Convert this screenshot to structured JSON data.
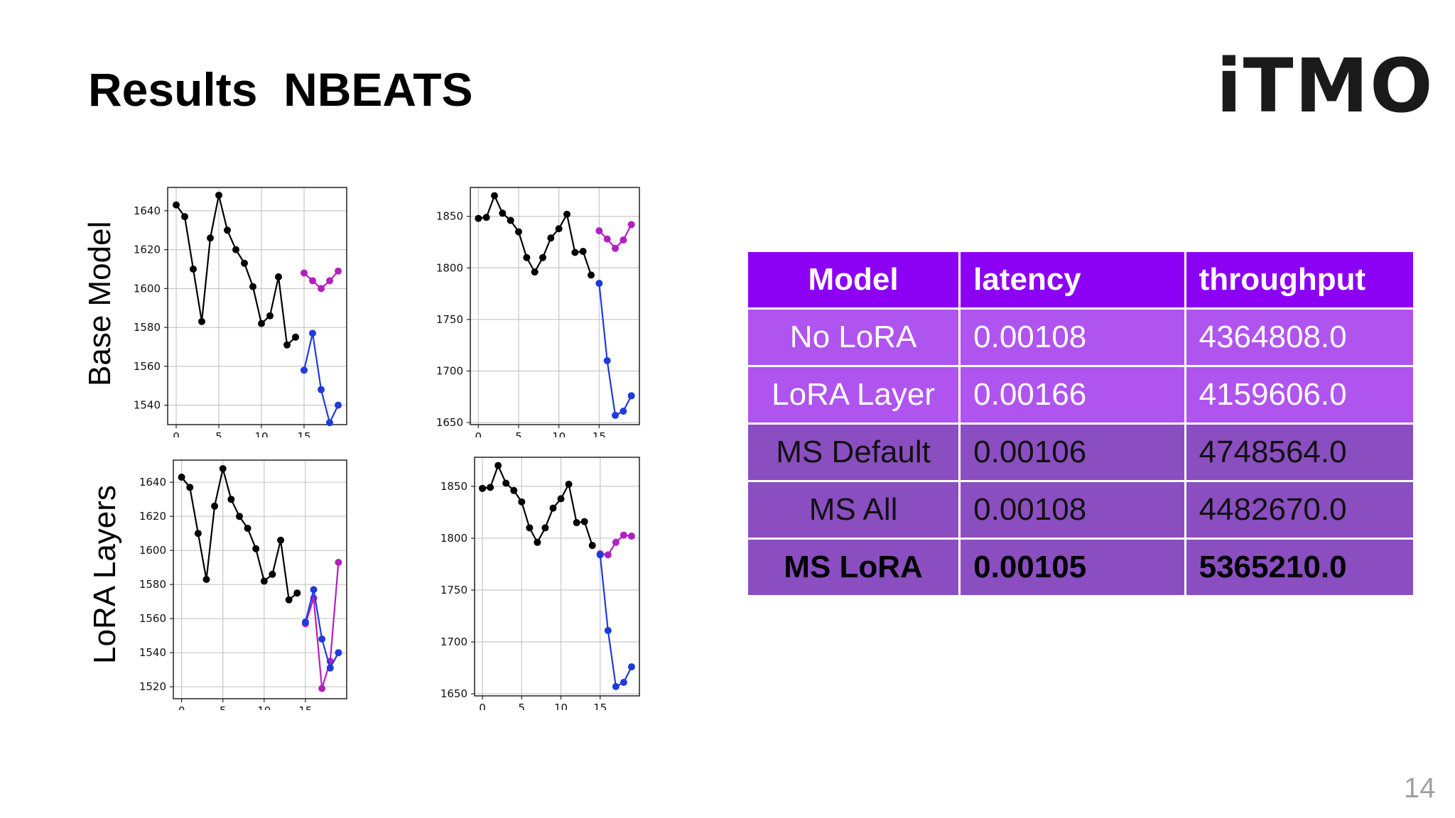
{
  "slide": {
    "title": "Results  NBEATS",
    "logo": "iTMO",
    "page_number": "14",
    "row_labels": [
      "Base Model",
      "LoRA Layers"
    ]
  },
  "colors": {
    "history": "#000000",
    "blue": "#1f3bdc",
    "magenta": "#b41fc0",
    "table_header": "#8c00f4",
    "table_light": "#b054ef",
    "table_dark": "#8a4ec0"
  },
  "table": {
    "headers": [
      "Model",
      "latency",
      "throughput"
    ],
    "rows": [
      {
        "model": "No LoRA",
        "latency": "0.00108",
        "throughput": "4364808.0"
      },
      {
        "model": "LoRA Layer",
        "latency": "0.00166",
        "throughput": "4159606.0"
      },
      {
        "model": "MS Default",
        "latency": "0.00106",
        "throughput": "4748564.0"
      },
      {
        "model": "MS All",
        "latency": "0.00108",
        "throughput": "4482670.0"
      },
      {
        "model": "MS LoRA",
        "latency": "0.00105",
        "throughput": "5365210.0"
      }
    ]
  },
  "chart_data": [
    {
      "type": "line",
      "xlim": [
        -1,
        20
      ],
      "ylim": [
        1530,
        1652
      ],
      "xticks": [
        0,
        5,
        10,
        15
      ],
      "yticks": [
        1540,
        1560,
        1580,
        1600,
        1620,
        1640
      ],
      "grid": true,
      "series": [
        {
          "color": "#000000",
          "x": [
            0,
            1,
            2,
            3,
            4,
            5,
            6,
            7,
            8,
            9,
            10,
            11,
            12,
            13,
            14
          ],
          "y": [
            1643,
            1637,
            1610,
            1583,
            1626,
            1648,
            1630,
            1620,
            1613,
            1601,
            1582,
            1586,
            1606,
            1571,
            1575
          ]
        },
        {
          "color": "#b41fc0",
          "x": [
            15,
            16,
            17,
            18,
            19
          ],
          "y": [
            1608,
            1604,
            1600,
            1604,
            1609
          ]
        },
        {
          "color": "#1f3bdc",
          "x": [
            15,
            16,
            17,
            18,
            19
          ],
          "y": [
            1558,
            1577,
            1548,
            1531,
            1540
          ]
        }
      ]
    },
    {
      "type": "line",
      "xlim": [
        -1,
        20
      ],
      "ylim": [
        1648,
        1878
      ],
      "xticks": [
        0,
        5,
        10,
        15
      ],
      "yticks": [
        1650,
        1700,
        1750,
        1800,
        1850
      ],
      "grid": true,
      "series": [
        {
          "color": "#000000",
          "x": [
            0,
            1,
            2,
            3,
            4,
            5,
            6,
            7,
            8,
            9,
            10,
            11,
            12,
            13,
            14
          ],
          "y": [
            1848,
            1849,
            1870,
            1853,
            1846,
            1835,
            1810,
            1796,
            1810,
            1829,
            1838,
            1852,
            1815,
            1816,
            1793
          ]
        },
        {
          "color": "#b41fc0",
          "x": [
            15,
            16,
            17,
            18,
            19
          ],
          "y": [
            1836,
            1828,
            1819,
            1827,
            1842
          ]
        },
        {
          "color": "#1f3bdc",
          "x": [
            15,
            16,
            17,
            18,
            19
          ],
          "y": [
            1785,
            1710,
            1657,
            1661,
            1676
          ]
        }
      ]
    },
    {
      "type": "line",
      "xlim": [
        -1,
        20
      ],
      "ylim": [
        1513,
        1653
      ],
      "xticks": [
        0,
        5,
        10,
        15
      ],
      "yticks": [
        1520,
        1540,
        1560,
        1580,
        1600,
        1620,
        1640
      ],
      "grid": true,
      "series": [
        {
          "color": "#000000",
          "x": [
            0,
            1,
            2,
            3,
            4,
            5,
            6,
            7,
            8,
            9,
            10,
            11,
            12,
            13,
            14
          ],
          "y": [
            1643,
            1637,
            1610,
            1583,
            1626,
            1648,
            1630,
            1620,
            1613,
            1601,
            1582,
            1586,
            1606,
            1571,
            1575
          ]
        },
        {
          "color": "#b41fc0",
          "x": [
            15,
            16,
            17,
            18,
            19
          ],
          "y": [
            1557,
            1572,
            1519,
            1535,
            1593
          ]
        },
        {
          "color": "#1f3bdc",
          "x": [
            15,
            16,
            17,
            18,
            19
          ],
          "y": [
            1558,
            1577,
            1548,
            1531,
            1540
          ]
        }
      ]
    },
    {
      "type": "line",
      "xlim": [
        -1,
        20
      ],
      "ylim": [
        1648,
        1878
      ],
      "xticks": [
        0,
        5,
        10,
        15
      ],
      "yticks": [
        1650,
        1700,
        1750,
        1800,
        1850
      ],
      "grid": true,
      "series": [
        {
          "color": "#000000",
          "x": [
            0,
            1,
            2,
            3,
            4,
            5,
            6,
            7,
            8,
            9,
            10,
            11,
            12,
            13,
            14
          ],
          "y": [
            1848,
            1849,
            1870,
            1853,
            1846,
            1835,
            1810,
            1796,
            1810,
            1829,
            1838,
            1852,
            1815,
            1816,
            1793
          ]
        },
        {
          "color": "#b41fc0",
          "x": [
            15,
            16,
            17,
            18,
            19
          ],
          "y": [
            1785,
            1784,
            1796,
            1803,
            1802
          ]
        },
        {
          "color": "#1f3bdc",
          "x": [
            15,
            16,
            17,
            18,
            19
          ],
          "y": [
            1784,
            1711,
            1657,
            1661,
            1676
          ]
        }
      ]
    }
  ]
}
